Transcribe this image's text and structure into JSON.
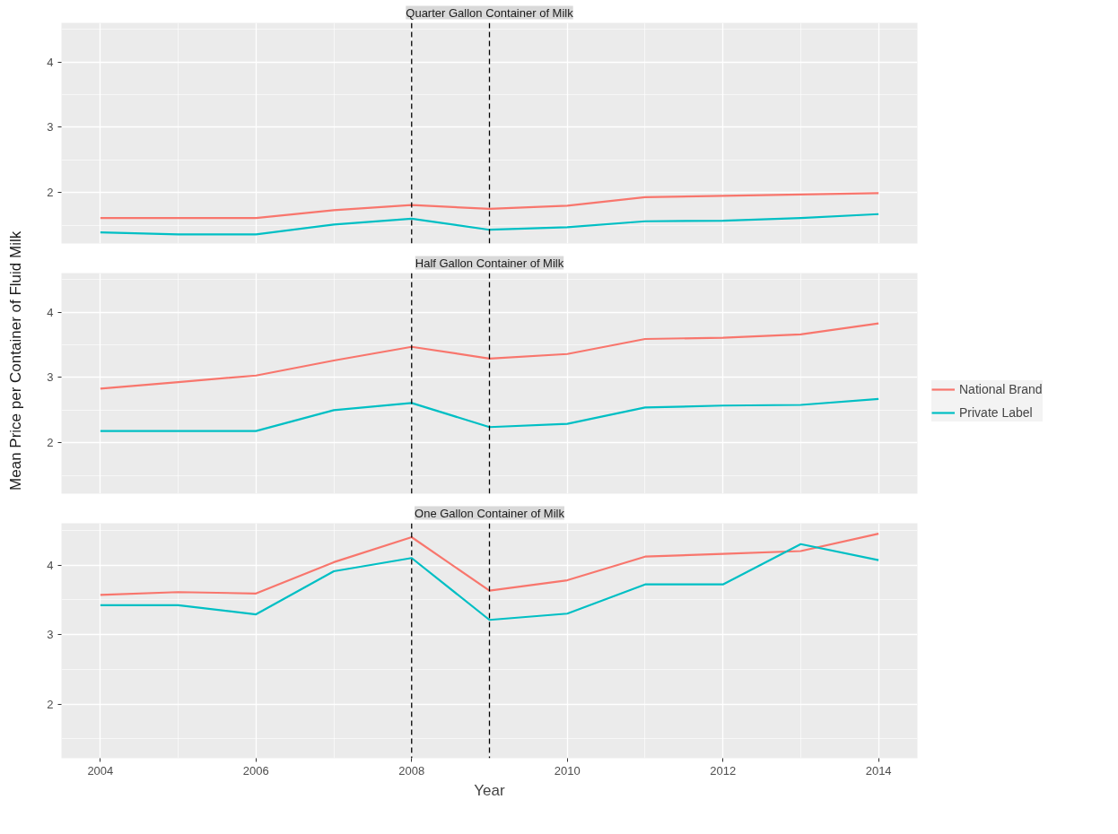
{
  "chart_data": [
    {
      "type": "line",
      "title": "Quarter Gallon Container of Milk",
      "x": [
        2004,
        2005,
        2006,
        2007,
        2008,
        2009,
        2010,
        2011,
        2012,
        2013,
        2014
      ],
      "series": [
        {
          "name": "National Brand",
          "color": "#f8766d",
          "values": [
            1.61,
            1.61,
            1.61,
            1.73,
            1.81,
            1.75,
            1.8,
            1.93,
            1.95,
            1.97,
            1.99
          ]
        },
        {
          "name": "Private Label",
          "color": "#00bfc4",
          "values": [
            1.39,
            1.36,
            1.36,
            1.51,
            1.6,
            1.43,
            1.47,
            1.56,
            1.57,
            1.61,
            1.67
          ]
        }
      ],
      "xlim": [
        2003.5,
        2014.5
      ],
      "ylim": [
        1.22,
        4.6
      ],
      "xticks": [
        2004,
        2006,
        2008,
        2010,
        2012,
        2014
      ],
      "yticks": [
        2,
        3,
        4
      ],
      "grid": true,
      "tick_labels": "y",
      "legend": "right",
      "ref_lines": [
        {
          "axis": "x",
          "value": 2008,
          "color": "#000000",
          "line_style": "dashed"
        },
        {
          "axis": "x",
          "value": 2009,
          "color": "#000000",
          "line_style": "dashed"
        }
      ]
    },
    {
      "type": "line",
      "title": "Half Gallon Container of Milk",
      "ylabel": "Mean Price per Container of Fluid Milk",
      "x": [
        2004,
        2005,
        2006,
        2007,
        2008,
        2009,
        2010,
        2011,
        2012,
        2013,
        2014
      ],
      "series": [
        {
          "color": "#f8766d",
          "values": [
            2.83,
            2.93,
            3.03,
            3.26,
            3.47,
            3.29,
            3.36,
            3.59,
            3.61,
            3.66,
            3.83
          ]
        },
        {
          "color": "#00bfc4",
          "values": [
            2.18,
            2.18,
            2.18,
            2.5,
            2.61,
            2.24,
            2.29,
            2.54,
            2.57,
            2.58,
            2.67
          ]
        }
      ],
      "xlim": [
        2003.5,
        2014.5
      ],
      "ylim": [
        1.22,
        4.6
      ],
      "xticks": [
        2004,
        2006,
        2008,
        2010,
        2012,
        2014
      ],
      "yticks": [
        2,
        3,
        4
      ],
      "grid": true,
      "tick_labels": "y",
      "ref_lines": [
        {
          "axis": "x",
          "value": 2008,
          "color": "#000000",
          "line_style": "dashed"
        },
        {
          "axis": "x",
          "value": 2009,
          "color": "#000000",
          "line_style": "dashed"
        }
      ]
    },
    {
      "type": "line",
      "title": "One Gallon Container of Milk",
      "xlabel": "Year",
      "x": [
        2004,
        2005,
        2006,
        2007,
        2008,
        2009,
        2010,
        2011,
        2012,
        2013,
        2014
      ],
      "series": [
        {
          "color": "#f8766d",
          "values": [
            3.57,
            3.61,
            3.59,
            4.04,
            4.4,
            3.63,
            3.78,
            4.12,
            4.16,
            4.2,
            4.45
          ]
        },
        {
          "color": "#00bfc4",
          "values": [
            3.42,
            3.42,
            3.29,
            3.91,
            4.1,
            3.21,
            3.3,
            3.72,
            3.72,
            4.3,
            4.07
          ]
        }
      ],
      "xlim": [
        2003.5,
        2014.5
      ],
      "ylim": [
        1.22,
        4.6
      ],
      "xticks": [
        2004,
        2006,
        2008,
        2010,
        2012,
        2014
      ],
      "yticks": [
        2,
        3,
        4
      ],
      "grid": true,
      "ref_lines": [
        {
          "axis": "x",
          "value": 2008,
          "color": "#000000",
          "line_style": "dashed"
        },
        {
          "axis": "x",
          "value": 2009,
          "color": "#000000",
          "line_style": "dashed"
        }
      ]
    }
  ]
}
